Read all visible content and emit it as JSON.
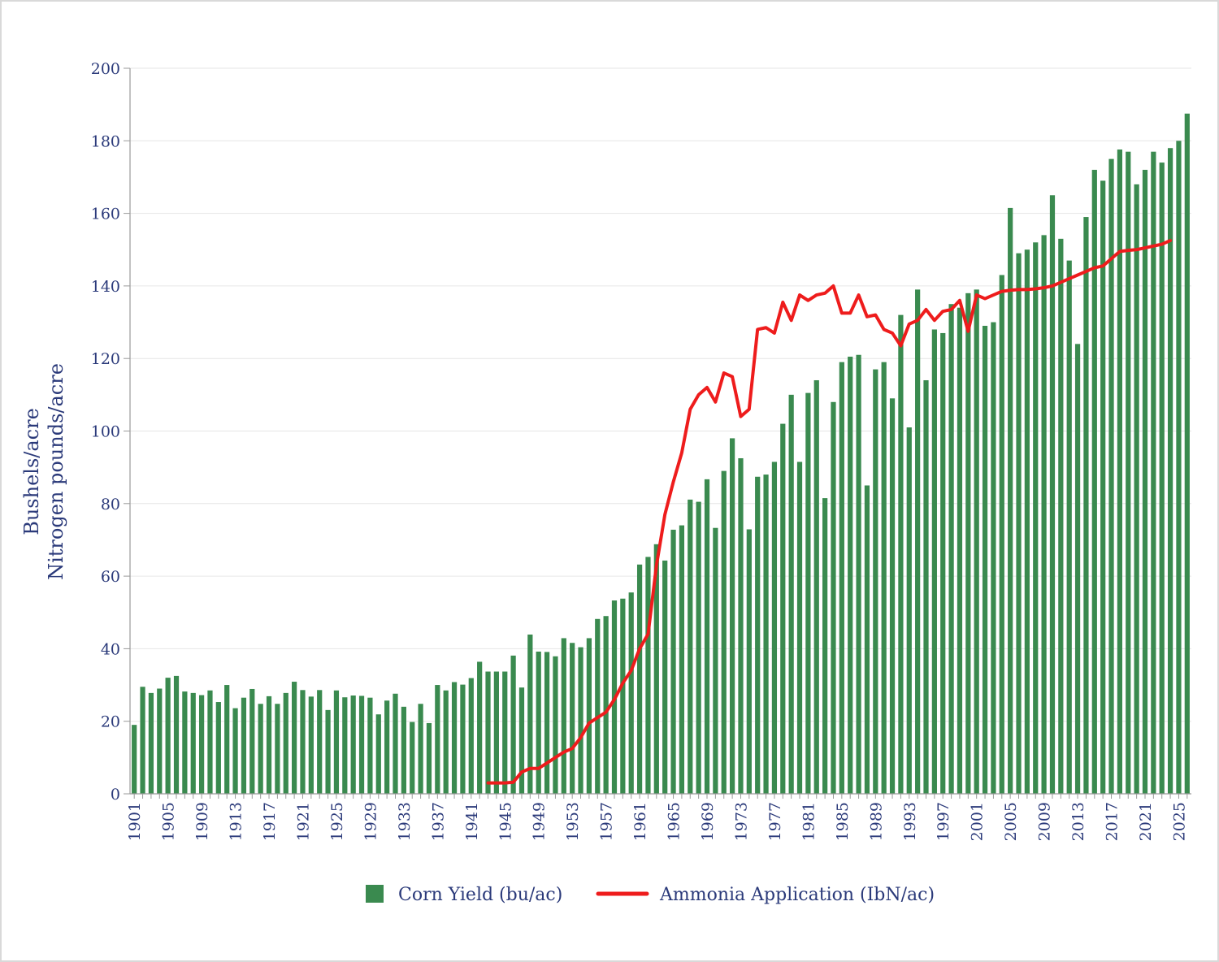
{
  "chart_data": {
    "type": "bar",
    "ylabel_lines": [
      "Bushels/acre",
      "Nitrogen pounds/acre"
    ],
    "ylim": [
      0,
      200
    ],
    "yticks": [
      0,
      20,
      40,
      60,
      80,
      100,
      120,
      140,
      160,
      180,
      200
    ],
    "grid": true,
    "legend_position": "bottom-center",
    "x_tick_labels": [
      "1901",
      "1905",
      "1909",
      "1913",
      "1917",
      "1921",
      "1925",
      "1929",
      "1933",
      "1937",
      "1941",
      "1945",
      "1949",
      "1953",
      "1957",
      "1961",
      "1965",
      "1969",
      "1973",
      "1977",
      "1981",
      "1985",
      "1989",
      "1993",
      "1997",
      "2001",
      "2005",
      "2009",
      "2013",
      "2017",
      "2021",
      "2025"
    ],
    "colors": {
      "bar": "#3a8a4f",
      "line": "#ee1c1c",
      "axis": "#9a9a9a",
      "grid": "#e6e6e6",
      "text": "#2b3a7a"
    },
    "series": [
      {
        "name": "Corn Yield (bu/ac)",
        "kind": "bar",
        "x_start": 1901,
        "values": [
          19,
          29.5,
          27.8,
          29,
          32,
          32.5,
          28.2,
          27.8,
          27.2,
          28.5,
          25.3,
          30,
          23.6,
          26.5,
          28.9,
          24.8,
          26.9,
          24.8,
          27.8,
          30.9,
          28.6,
          26.8,
          28.6,
          23.1,
          28.5,
          26.6,
          27.1,
          27,
          26.5,
          21.9,
          25.7,
          27.6,
          24,
          19.8,
          24.8,
          19.5,
          30,
          28.5,
          30.8,
          30.1,
          31.9,
          36.4,
          33.7,
          33.7,
          33.7,
          38.1,
          29.3,
          43.9,
          39.2,
          39.1,
          37.9,
          42.9,
          41.6,
          40.4,
          42.9,
          48.2,
          49,
          53.3,
          53.8,
          55.5,
          63.2,
          65.3,
          68.8,
          64.3,
          72.8,
          74,
          81.1,
          80.5,
          86.7,
          73.3,
          89,
          98,
          92.5,
          72.9,
          87.4,
          88,
          91.5,
          102,
          110,
          91.5,
          110.5,
          114,
          81.5,
          108,
          119,
          120.5,
          121,
          85,
          117,
          119,
          109,
          132,
          101,
          139,
          114,
          128,
          127,
          135,
          134,
          138,
          139,
          129,
          130,
          143,
          161.5,
          149,
          150,
          152,
          154,
          165,
          153,
          147,
          124,
          159,
          172,
          169,
          175,
          177.6,
          177,
          168,
          172,
          177,
          174,
          178,
          180,
          187.5
        ]
      },
      {
        "name": "Ammonia Application (IbN/ac)",
        "kind": "line",
        "x": [
          1943,
          1944,
          1945,
          1946,
          1947,
          1948,
          1949,
          1950,
          1951,
          1952,
          1953,
          1954,
          1955,
          1956,
          1957,
          1958,
          1959,
          1960,
          1961,
          1962,
          1963,
          1964,
          1965,
          1966,
          1967,
          1968,
          1969,
          1970,
          1971,
          1972,
          1973,
          1974,
          1975,
          1976,
          1977,
          1978,
          1979,
          1980,
          1981,
          1982,
          1983,
          1984,
          1985,
          1986,
          1987,
          1988,
          1989,
          1990,
          1991,
          1992,
          1993,
          1994,
          1995,
          1996,
          1997,
          1998,
          1999,
          2000,
          2001,
          2002,
          2003,
          2004,
          2005,
          2006,
          2007,
          2008,
          2009,
          2010,
          2011,
          2012,
          2013,
          2014,
          2015,
          2016,
          2017,
          2018,
          2019,
          2020,
          2021,
          2022,
          2023,
          2024
        ],
        "values": [
          3,
          3,
          3,
          3.2,
          6,
          7,
          7,
          8.5,
          10,
          11.5,
          12.5,
          15.5,
          19.5,
          21,
          22.5,
          26,
          30.5,
          34,
          40,
          44,
          63,
          77,
          86,
          94,
          106,
          110,
          112,
          108,
          116,
          115,
          104,
          106,
          128,
          128.5,
          127,
          135.5,
          130.5,
          137.5,
          136,
          137.5,
          138,
          140,
          132.5,
          132.5,
          137.5,
          131.5,
          132,
          128,
          127,
          123.5,
          129.5,
          130.5,
          133.5,
          130.5,
          133,
          133.5,
          136,
          127.5,
          137.5,
          136.5,
          137.5,
          138.5,
          138.8,
          139,
          139,
          139.2,
          139.5,
          140,
          141,
          142,
          143,
          144,
          145,
          145.5,
          147.5,
          149.5,
          149.8,
          150,
          150.5,
          151,
          151.5,
          152.5
        ]
      }
    ]
  }
}
